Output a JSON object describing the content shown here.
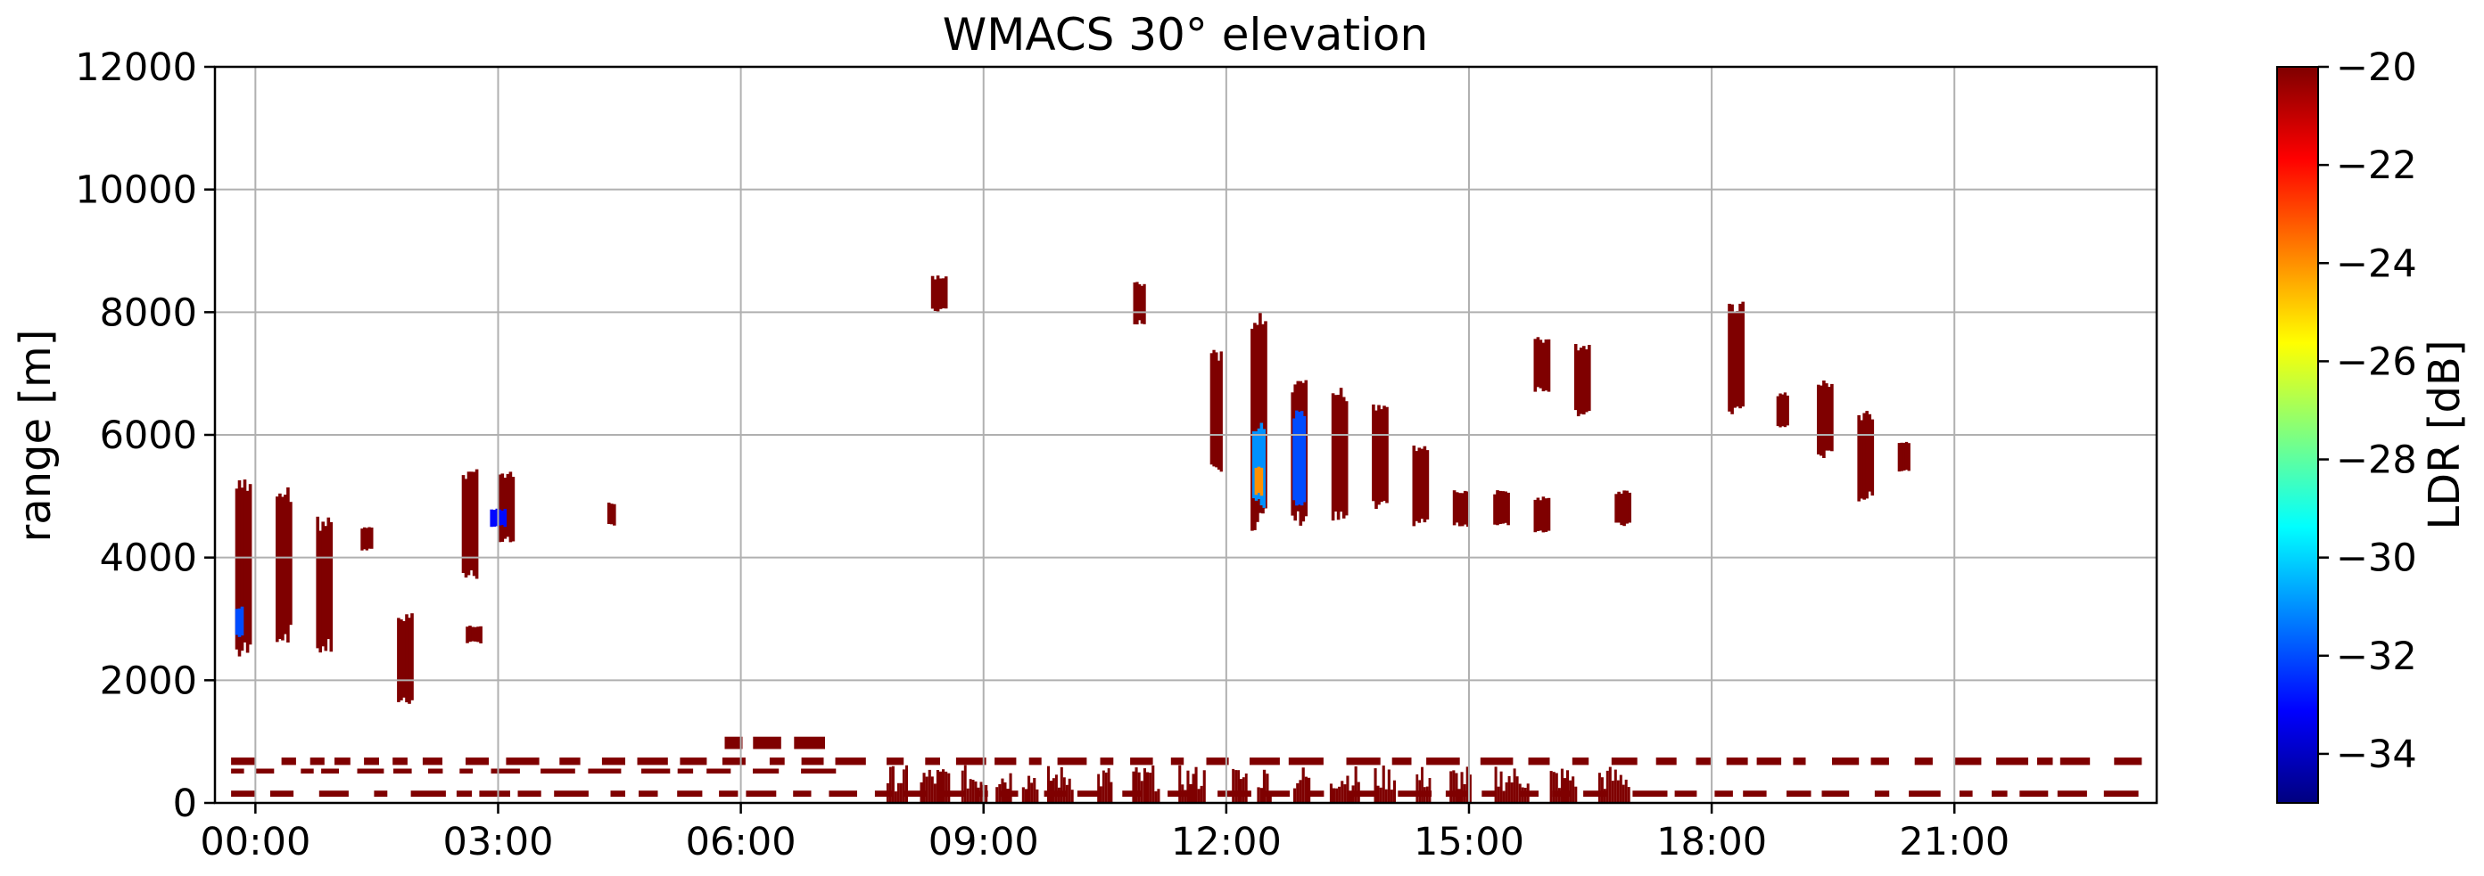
{
  "chart_data": {
    "type": "heatmap",
    "title": "WMACS 30° elevation",
    "xlabel": "",
    "ylabel": "range [m]",
    "x_tick_labels": [
      "00:00",
      "03:00",
      "06:00",
      "09:00",
      "12:00",
      "15:00",
      "18:00",
      "21:00"
    ],
    "x_ticks_hours": [
      0,
      3,
      6,
      9,
      12,
      15,
      18,
      21
    ],
    "xlim_hours": [
      -0.5,
      23.5
    ],
    "y_ticks": [
      0,
      2000,
      4000,
      6000,
      8000,
      10000,
      12000
    ],
    "ylim": [
      0,
      12000
    ],
    "grid": true,
    "colorbar": {
      "label": "LDR [dB]",
      "min": -35,
      "max": -20,
      "ticks": [
        -20,
        -22,
        -24,
        -26,
        -28,
        -30,
        -32,
        -34
      ],
      "tick_labels": [
        "−20",
        "−22",
        "−24",
        "−26",
        "−28",
        "−30",
        "−32",
        "−34"
      ],
      "colormap": "jet",
      "stops": [
        "#00007f",
        "#0000ff",
        "#007fff",
        "#00ffff",
        "#7fff7f",
        "#ffff00",
        "#ff7f00",
        "#ff0000",
        "#7f0000"
      ]
    },
    "dominant_color": "#7f0000",
    "minor_colors": [
      "#1a1aff",
      "#ffb000"
    ],
    "echo_regions": [
      {
        "t0": -0.25,
        "t1": -0.05,
        "r0": 2300,
        "r1": 5300,
        "ldr": -20
      },
      {
        "t0": 0.25,
        "t1": 0.45,
        "r0": 2600,
        "r1": 5200,
        "ldr": -20
      },
      {
        "t0": 0.75,
        "t1": 0.95,
        "r0": 2400,
        "r1": 4700,
        "ldr": -20
      },
      {
        "t0": 1.3,
        "t1": 1.45,
        "r0": 4100,
        "r1": 4500,
        "ldr": -20
      },
      {
        "t0": 1.75,
        "t1": 1.95,
        "r0": 1600,
        "r1": 3100,
        "ldr": -20
      },
      {
        "t0": 2.55,
        "t1": 2.75,
        "r0": 3600,
        "r1": 5500,
        "ldr": -20
      },
      {
        "t0": 2.6,
        "t1": 2.8,
        "r0": 2600,
        "r1": 2900,
        "ldr": -20
      },
      {
        "t0": 3.0,
        "t1": 3.2,
        "r0": 4200,
        "r1": 5400,
        "ldr": -20
      },
      {
        "t0": 4.35,
        "t1": 4.45,
        "r0": 4500,
        "r1": 4900,
        "ldr": -20
      },
      {
        "t0": 8.35,
        "t1": 8.55,
        "r0": 8000,
        "r1": 8600,
        "ldr": -20
      },
      {
        "t0": 10.85,
        "t1": 11.0,
        "r0": 7800,
        "r1": 8500,
        "ldr": -20
      },
      {
        "t0": 11.8,
        "t1": 11.95,
        "r0": 5400,
        "r1": 7400,
        "ldr": -20
      },
      {
        "t0": 12.3,
        "t1": 12.5,
        "r0": 4400,
        "r1": 8000,
        "ldr": -20
      },
      {
        "t0": 12.8,
        "t1": 13.0,
        "r0": 4500,
        "r1": 6900,
        "ldr": -20
      },
      {
        "t0": 13.3,
        "t1": 13.5,
        "r0": 4500,
        "r1": 6800,
        "ldr": -20
      },
      {
        "t0": 13.8,
        "t1": 14.0,
        "r0": 4700,
        "r1": 6600,
        "ldr": -20
      },
      {
        "t0": 14.3,
        "t1": 14.5,
        "r0": 4500,
        "r1": 5900,
        "ldr": -20
      },
      {
        "t0": 14.8,
        "t1": 15.0,
        "r0": 4500,
        "r1": 5100,
        "ldr": -20
      },
      {
        "t0": 15.3,
        "t1": 15.5,
        "r0": 4500,
        "r1": 5100,
        "ldr": -20
      },
      {
        "t0": 15.8,
        "t1": 16.0,
        "r0": 4400,
        "r1": 5000,
        "ldr": -20
      },
      {
        "t0": 15.8,
        "t1": 16.0,
        "r0": 6700,
        "r1": 7600,
        "ldr": -20
      },
      {
        "t0": 16.3,
        "t1": 16.5,
        "r0": 6300,
        "r1": 7500,
        "ldr": -20
      },
      {
        "t0": 16.8,
        "t1": 17.0,
        "r0": 4500,
        "r1": 5100,
        "ldr": -20
      },
      {
        "t0": 18.2,
        "t1": 18.4,
        "r0": 6300,
        "r1": 8200,
        "ldr": -20
      },
      {
        "t0": 18.8,
        "t1": 18.95,
        "r0": 6100,
        "r1": 6700,
        "ldr": -20
      },
      {
        "t0": 19.3,
        "t1": 19.5,
        "r0": 5600,
        "r1": 6900,
        "ldr": -20
      },
      {
        "t0": 19.8,
        "t1": 20.0,
        "r0": 4900,
        "r1": 6400,
        "ldr": -20
      },
      {
        "t0": 20.3,
        "t1": 20.45,
        "r0": 5400,
        "r1": 5900,
        "ldr": -20
      },
      {
        "t0": -0.25,
        "t1": -0.15,
        "r0": 2700,
        "r1": 3200,
        "ldr": -32
      },
      {
        "t0": 2.9,
        "t1": 3.1,
        "r0": 4500,
        "r1": 4800,
        "ldr": -33
      },
      {
        "t0": 12.32,
        "t1": 12.48,
        "r0": 4800,
        "r1": 6200,
        "ldr": -31
      },
      {
        "t0": 12.35,
        "t1": 12.45,
        "r0": 5000,
        "r1": 5500,
        "ldr": -24
      },
      {
        "t0": 12.82,
        "t1": 12.98,
        "r0": 4800,
        "r1": 6400,
        "ldr": -32
      }
    ],
    "low_level_bands": [
      {
        "t0": -0.3,
        "t1": 23.4,
        "r0": 620,
        "r1": 740,
        "ldr": -20
      },
      {
        "t0": -0.3,
        "t1": 7.3,
        "r0": 480,
        "r1": 560,
        "ldr": -20
      },
      {
        "t0": 5.8,
        "t1": 7.1,
        "r0": 880,
        "r1": 1080,
        "ldr": -20
      },
      {
        "t0": 7.8,
        "t1": 17.0,
        "r0": 0,
        "r1": 620,
        "ldr": -20
      },
      {
        "t0": -0.3,
        "t1": 23.4,
        "r0": 100,
        "r1": 200,
        "ldr": -20
      }
    ]
  }
}
